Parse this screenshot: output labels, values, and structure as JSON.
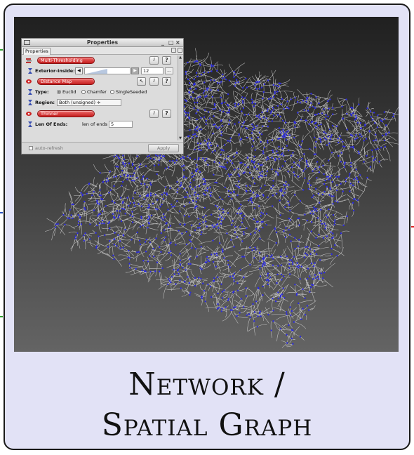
{
  "caption": {
    "line1": "Network /",
    "line2": "Spatial Graph"
  },
  "properties_window": {
    "title": "Properties",
    "controls": {
      "minimize": "_",
      "maximize": "□",
      "close": "×"
    },
    "tab": "Properties",
    "modules": {
      "multi_thresholding": {
        "label": "Multi-Thresholding",
        "param": {
          "label": "Exterior-Inside:",
          "value": "12",
          "more": "..."
        }
      },
      "distance_map": {
        "label": "Distance Map",
        "type": {
          "label": "Type:",
          "options": [
            "Euclid",
            "Chamfer",
            "SingleSeeded"
          ],
          "selected": "Euclid"
        },
        "region": {
          "label": "Region:",
          "value": "Both (unsigned) ≑"
        }
      },
      "thinner": {
        "label": "Thinner",
        "param": {
          "label": "Len Of Ends:",
          "field_label": "len of ends",
          "value": "5"
        }
      }
    },
    "help_label": "?",
    "auto_refresh_label": "auto-refresh",
    "apply_label": "Apply"
  },
  "colors": {
    "card_bg": "#e2e2f6",
    "module_pill": "#d83434",
    "graph_edges": "#d8d8d8",
    "graph_nodes": "#2a2ae0"
  }
}
